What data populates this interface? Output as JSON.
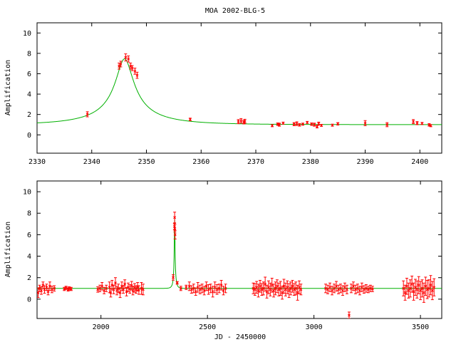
{
  "title": "MOA 2002-BLG-5",
  "colors": {
    "model": "#00b000",
    "data": "#ff0000",
    "axis": "#000000"
  },
  "chart_data": [
    {
      "type": "scatter",
      "xlabel": "",
      "ylabel": "Amplification",
      "xlim": [
        2330,
        2404
      ],
      "ylim": [
        -1.8,
        11
      ],
      "xticks": [
        2330,
        2340,
        2350,
        2360,
        2370,
        2380,
        2390,
        2400
      ],
      "yticks": [
        0,
        2,
        4,
        6,
        8,
        10
      ],
      "model": {
        "name": "",
        "t0": 2346,
        "tE": 12,
        "u0": 0.135,
        "x_range": [
          2330,
          2404
        ]
      },
      "points": [
        [
          2339.2,
          2.02,
          0.25
        ],
        [
          2345.0,
          6.75,
          0.3
        ],
        [
          2345.3,
          6.95,
          0.28
        ],
        [
          2346.2,
          7.6,
          0.35
        ],
        [
          2346.7,
          7.45,
          0.3
        ],
        [
          2347.1,
          6.75,
          0.3
        ],
        [
          2347.4,
          6.55,
          0.25
        ],
        [
          2347.9,
          6.25,
          0.3
        ],
        [
          2348.3,
          5.85,
          0.3
        ],
        [
          2358.0,
          1.52,
          0.12
        ],
        [
          2366.8,
          1.3,
          0.2
        ],
        [
          2367.3,
          1.38,
          0.22
        ],
        [
          2367.8,
          1.25,
          0.18
        ],
        [
          2368.0,
          1.33,
          0.2
        ],
        [
          2373.0,
          0.9,
          0.1
        ],
        [
          2374.0,
          1.05,
          0.12
        ],
        [
          2374.3,
          1.0,
          0.15
        ],
        [
          2375.0,
          1.15,
          0.1
        ],
        [
          2377.0,
          1.05,
          0.15
        ],
        [
          2377.5,
          1.1,
          0.18
        ],
        [
          2378.0,
          0.98,
          0.12
        ],
        [
          2378.6,
          1.05,
          0.1
        ],
        [
          2379.4,
          1.22,
          0.1
        ],
        [
          2380.2,
          1.05,
          0.12
        ],
        [
          2380.7,
          1.0,
          0.15
        ],
        [
          2381.2,
          0.8,
          0.12
        ],
        [
          2381.5,
          1.1,
          0.15
        ],
        [
          2382.0,
          0.93,
          0.1
        ],
        [
          2384.0,
          0.95,
          0.1
        ],
        [
          2385.0,
          1.08,
          0.12
        ],
        [
          2390.0,
          1.15,
          0.25
        ],
        [
          2394.0,
          1.0,
          0.2
        ],
        [
          2398.8,
          1.3,
          0.2
        ],
        [
          2399.5,
          1.15,
          0.15
        ],
        [
          2400.4,
          1.12,
          0.1
        ],
        [
          2401.7,
          0.98,
          0.12
        ],
        [
          2402.0,
          0.9,
          0.1
        ]
      ]
    },
    {
      "type": "scatter",
      "xlabel": "JD - 2450000",
      "ylabel": "Amplification",
      "xlim": [
        1700,
        3600
      ],
      "ylim": [
        -1.8,
        11
      ],
      "xticks": [
        2000,
        2500,
        3000,
        3500
      ],
      "yticks": [
        0,
        2,
        4,
        6,
        8,
        10
      ],
      "model": {
        "name": "",
        "t0": 2346,
        "tE": 12,
        "u0": 0.135,
        "x_range": [
          1700,
          3600
        ]
      },
      "points": [
        [
          1705,
          0.6,
          0.45
        ],
        [
          1712,
          1.0,
          0.3
        ],
        [
          1720,
          0.8,
          0.35
        ],
        [
          1728,
          1.3,
          0.3
        ],
        [
          1735,
          0.9,
          0.35
        ],
        [
          1745,
          1.1,
          0.3
        ],
        [
          1752,
          0.7,
          0.3
        ],
        [
          1760,
          1.2,
          0.4
        ],
        [
          1770,
          0.9,
          0.3
        ],
        [
          1781,
          1.0,
          0.25
        ],
        [
          1828,
          0.95,
          0.15
        ],
        [
          1836,
          1.05,
          0.15
        ],
        [
          1846,
          0.9,
          0.15
        ],
        [
          1851,
          1.0,
          0.15
        ],
        [
          1860,
          0.95,
          0.15
        ],
        [
          1985,
          0.9,
          0.25
        ],
        [
          1995,
          1.0,
          0.3
        ],
        [
          2005,
          1.2,
          0.35
        ],
        [
          2015,
          0.8,
          0.3
        ],
        [
          2025,
          1.0,
          0.3
        ],
        [
          2040,
          1.1,
          0.5
        ],
        [
          2046,
          0.6,
          0.4
        ],
        [
          2052,
          1.3,
          0.45
        ],
        [
          2060,
          0.9,
          0.4
        ],
        [
          2068,
          1.5,
          0.5
        ],
        [
          2075,
          0.8,
          0.4
        ],
        [
          2082,
          1.0,
          0.4
        ],
        [
          2090,
          0.6,
          0.45
        ],
        [
          2098,
          1.2,
          0.4
        ],
        [
          2105,
          0.9,
          0.35
        ],
        [
          2112,
          1.4,
          0.4
        ],
        [
          2120,
          0.7,
          0.4
        ],
        [
          2128,
          1.1,
          0.4
        ],
        [
          2136,
          0.95,
          0.4
        ],
        [
          2144,
          1.25,
          0.4
        ],
        [
          2150,
          0.8,
          0.4
        ],
        [
          2158,
          1.05,
          0.4
        ],
        [
          2165,
          0.9,
          0.35
        ],
        [
          2172,
          1.15,
          0.4
        ],
        [
          2178,
          0.85,
          0.4
        ],
        [
          2190,
          1.0,
          0.55
        ],
        [
          2198,
          0.9,
          0.5
        ],
        [
          2339,
          2.02,
          0.25
        ],
        [
          2345,
          6.75,
          0.3
        ],
        [
          2346,
          7.6,
          0.5
        ],
        [
          2347,
          6.6,
          0.35
        ],
        [
          2348,
          6.0,
          0.4
        ],
        [
          2358,
          1.52,
          0.12
        ],
        [
          2375,
          1.0,
          0.2
        ],
        [
          2400,
          1.1,
          0.2
        ],
        [
          2415,
          1.2,
          0.4
        ],
        [
          2425,
          0.9,
          0.35
        ],
        [
          2435,
          1.0,
          0.4
        ],
        [
          2445,
          0.7,
          0.35
        ],
        [
          2455,
          1.1,
          0.45
        ],
        [
          2465,
          0.9,
          0.4
        ],
        [
          2475,
          1.0,
          0.4
        ],
        [
          2485,
          0.8,
          0.4
        ],
        [
          2495,
          1.2,
          0.4
        ],
        [
          2505,
          0.9,
          0.45
        ],
        [
          2515,
          1.0,
          0.4
        ],
        [
          2525,
          0.7,
          0.5
        ],
        [
          2535,
          1.1,
          0.5
        ],
        [
          2545,
          0.9,
          0.45
        ],
        [
          2555,
          1.0,
          0.4
        ],
        [
          2565,
          1.3,
          0.45
        ],
        [
          2575,
          0.8,
          0.4
        ],
        [
          2585,
          1.0,
          0.4
        ],
        [
          2715,
          1.0,
          0.5
        ],
        [
          2723,
          0.9,
          0.55
        ],
        [
          2731,
          1.1,
          0.55
        ],
        [
          2739,
          0.8,
          0.6
        ],
        [
          2747,
          1.2,
          0.55
        ],
        [
          2755,
          0.9,
          0.55
        ],
        [
          2763,
          1.0,
          0.6
        ],
        [
          2771,
          1.4,
          0.65
        ],
        [
          2779,
          0.7,
          0.6
        ],
        [
          2787,
          1.1,
          0.6
        ],
        [
          2795,
          0.9,
          0.6
        ],
        [
          2803,
          1.3,
          0.65
        ],
        [
          2811,
          0.8,
          0.6
        ],
        [
          2819,
          1.0,
          0.6
        ],
        [
          2827,
          1.2,
          0.6
        ],
        [
          2835,
          0.9,
          0.6
        ],
        [
          2843,
          1.0,
          0.65
        ],
        [
          2851,
          0.6,
          0.6
        ],
        [
          2859,
          1.2,
          0.65
        ],
        [
          2867,
          0.9,
          0.6
        ],
        [
          2875,
          1.1,
          0.6
        ],
        [
          2883,
          0.8,
          0.65
        ],
        [
          2891,
          1.0,
          0.6
        ],
        [
          2899,
          1.2,
          0.55
        ],
        [
          2907,
          0.9,
          0.55
        ],
        [
          2915,
          1.0,
          0.6
        ],
        [
          2923,
          0.6,
          0.7
        ],
        [
          2931,
          1.1,
          0.6
        ],
        [
          2939,
          0.9,
          0.5
        ],
        [
          3055,
          1.0,
          0.4
        ],
        [
          3065,
          0.9,
          0.4
        ],
        [
          3075,
          1.1,
          0.4
        ],
        [
          3085,
          0.8,
          0.4
        ],
        [
          3095,
          1.0,
          0.4
        ],
        [
          3105,
          1.2,
          0.45
        ],
        [
          3115,
          0.9,
          0.4
        ],
        [
          3125,
          1.0,
          0.4
        ],
        [
          3135,
          0.8,
          0.45
        ],
        [
          3145,
          1.1,
          0.4
        ],
        [
          3155,
          0.9,
          0.4
        ],
        [
          3165,
          -1.5,
          0.3
        ],
        [
          3175,
          1.0,
          0.4
        ],
        [
          3185,
          1.2,
          0.4
        ],
        [
          3195,
          0.9,
          0.4
        ],
        [
          3205,
          1.0,
          0.4
        ],
        [
          3215,
          0.8,
          0.4
        ],
        [
          3225,
          1.1,
          0.4
        ],
        [
          3235,
          0.9,
          0.35
        ],
        [
          3245,
          1.0,
          0.35
        ],
        [
          3255,
          0.9,
          0.3
        ],
        [
          3265,
          1.0,
          0.3
        ],
        [
          3275,
          0.95,
          0.25
        ],
        [
          3420,
          1.0,
          0.7
        ],
        [
          3428,
          0.6,
          0.7
        ],
        [
          3436,
          1.2,
          0.75
        ],
        [
          3444,
          0.8,
          0.7
        ],
        [
          3452,
          1.0,
          0.8
        ],
        [
          3460,
          1.4,
          0.75
        ],
        [
          3468,
          0.7,
          0.8
        ],
        [
          3476,
          1.1,
          0.75
        ],
        [
          3484,
          0.9,
          0.8
        ],
        [
          3492,
          1.3,
          0.8
        ],
        [
          3500,
          0.8,
          0.85
        ],
        [
          3508,
          1.0,
          0.8
        ],
        [
          3516,
          0.6,
          0.9
        ],
        [
          3524,
          1.2,
          0.85
        ],
        [
          3532,
          0.9,
          0.85
        ],
        [
          3540,
          1.0,
          0.8
        ],
        [
          3548,
          1.3,
          0.9
        ],
        [
          3556,
          0.8,
          0.85
        ],
        [
          3564,
          1.1,
          0.8
        ]
      ]
    }
  ]
}
